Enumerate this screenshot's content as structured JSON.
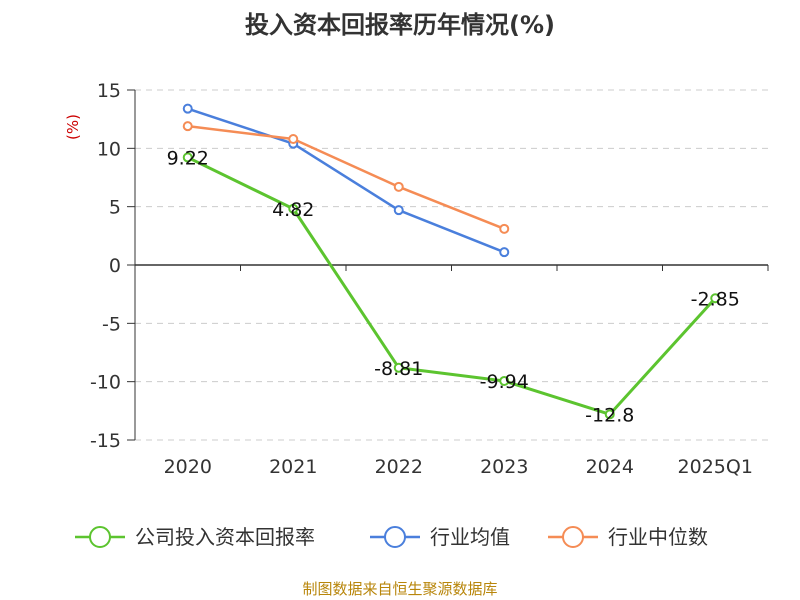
{
  "source": "制图数据来自恒生聚源数据库",
  "chart_data": {
    "type": "line",
    "title": "投入资本回报率历年情况(%)",
    "ylabel": "(%)",
    "xlabel": "",
    "categories": [
      "2020",
      "2021",
      "2022",
      "2023",
      "2024",
      "2025Q1"
    ],
    "ylim": [
      -15,
      15
    ],
    "yticks": [
      15,
      10,
      5,
      0,
      -5,
      -10,
      -15
    ],
    "grid": true,
    "legend_position": "bottom",
    "series": [
      {
        "name": "公司投入资本回报率",
        "color": "#5cc42f",
        "values": [
          9.22,
          4.82,
          -8.81,
          -9.94,
          -12.8,
          -2.85
        ],
        "labels": [
          "9.22",
          "4.82",
          "-8.81",
          "-9.94",
          "-12.8",
          "-2.85"
        ]
      },
      {
        "name": "行业均值",
        "color": "#4a7fdc",
        "values": [
          13.4,
          10.4,
          4.7,
          1.1,
          null,
          null
        ]
      },
      {
        "name": "行业中位数",
        "color": "#f58c55",
        "values": [
          11.9,
          10.8,
          6.7,
          3.1,
          null,
          null
        ]
      }
    ]
  }
}
